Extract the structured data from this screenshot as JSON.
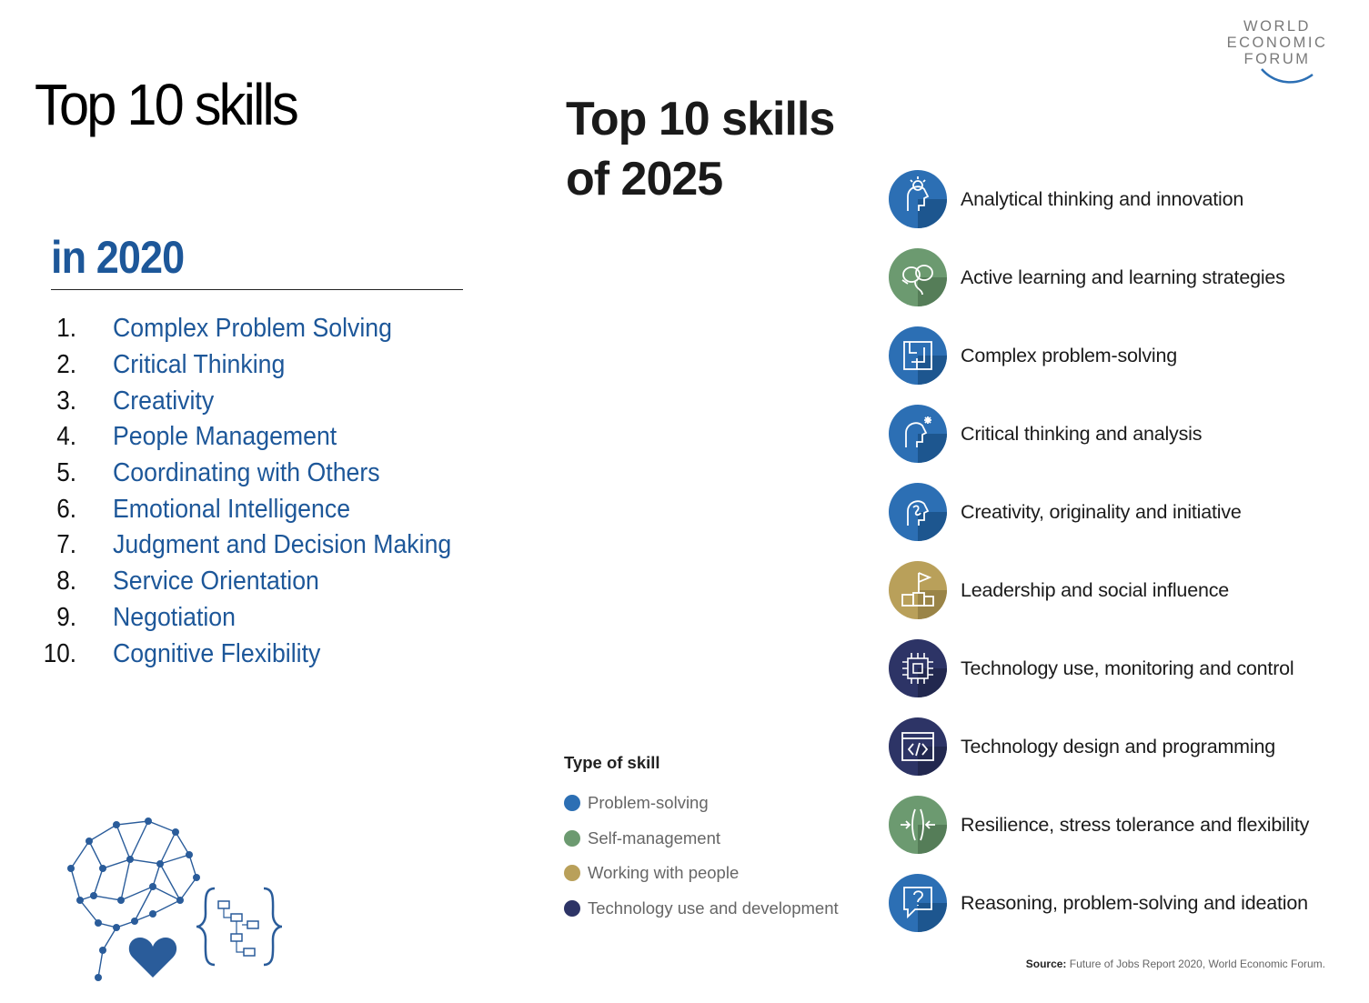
{
  "left": {
    "title": "Top 10 skills",
    "subtitle": "in  2020",
    "skills": [
      {
        "num": "1.",
        "label": "Complex Problem Solving"
      },
      {
        "num": "2.",
        "label": "Critical Thinking"
      },
      {
        "num": "3.",
        "label": "Creativity"
      },
      {
        "num": "4.",
        "label": "People Management"
      },
      {
        "num": "5.",
        "label": "Coordinating with Others"
      },
      {
        "num": "6.",
        "label": "Emotional Intelligence"
      },
      {
        "num": "7.",
        "label": "Judgment and Decision Making"
      },
      {
        "num": "8.",
        "label": "Service Orientation"
      },
      {
        "num": "9.",
        "label": "Negotiation"
      },
      {
        "num": "10.",
        "label": "Cognitive Flexibility"
      }
    ],
    "illustration_icons": [
      "network-brain-icon",
      "heart-puzzle-icon",
      "flowchart-braces-icon"
    ]
  },
  "right": {
    "logo": {
      "line1": "WORLD",
      "line2": "ECONOMIC",
      "line3": "FORUM"
    },
    "title_line1": "Top 10 skills",
    "title_line2": "of 2025",
    "skills": [
      {
        "label": "Analytical thinking and innovation",
        "type": "problem-solving",
        "icon": "lightbulb-head-icon"
      },
      {
        "label": "Active learning and learning strategies",
        "type": "self-management",
        "icon": "brain-learning-icon"
      },
      {
        "label": "Complex problem-solving",
        "type": "problem-solving",
        "icon": "maze-icon"
      },
      {
        "label": "Critical thinking and analysis",
        "type": "problem-solving",
        "icon": "spark-head-icon"
      },
      {
        "label": "Creativity, originality and initiative",
        "type": "problem-solving",
        "icon": "creative-head-icon"
      },
      {
        "label": "Leadership and social influence",
        "type": "working-with-people",
        "icon": "flag-podium-icon"
      },
      {
        "label": "Technology use, monitoring and control",
        "type": "technology",
        "icon": "chip-icon"
      },
      {
        "label": "Technology design and programming",
        "type": "technology",
        "icon": "code-window-icon"
      },
      {
        "label": "Resilience, stress tolerance and flexibility",
        "type": "self-management",
        "icon": "pressure-arrows-icon"
      },
      {
        "label": "Reasoning, problem-solving and ideation",
        "type": "problem-solving",
        "icon": "question-bubble-icon"
      }
    ],
    "legend_title": "Type of skill",
    "legend": [
      {
        "key": "problem-solving",
        "label": "Problem-solving",
        "color": "#2c6fb4"
      },
      {
        "key": "self-management",
        "label": "Self-management",
        "color": "#6c9a70"
      },
      {
        "key": "working-with-people",
        "label": "Working with people",
        "color": "#b9a05a"
      },
      {
        "key": "technology",
        "label": "Technology use and development",
        "color": "#2d3466"
      }
    ],
    "source_label": "Source:",
    "source_text": "Future of Jobs Report 2020, World Economic Forum."
  }
}
